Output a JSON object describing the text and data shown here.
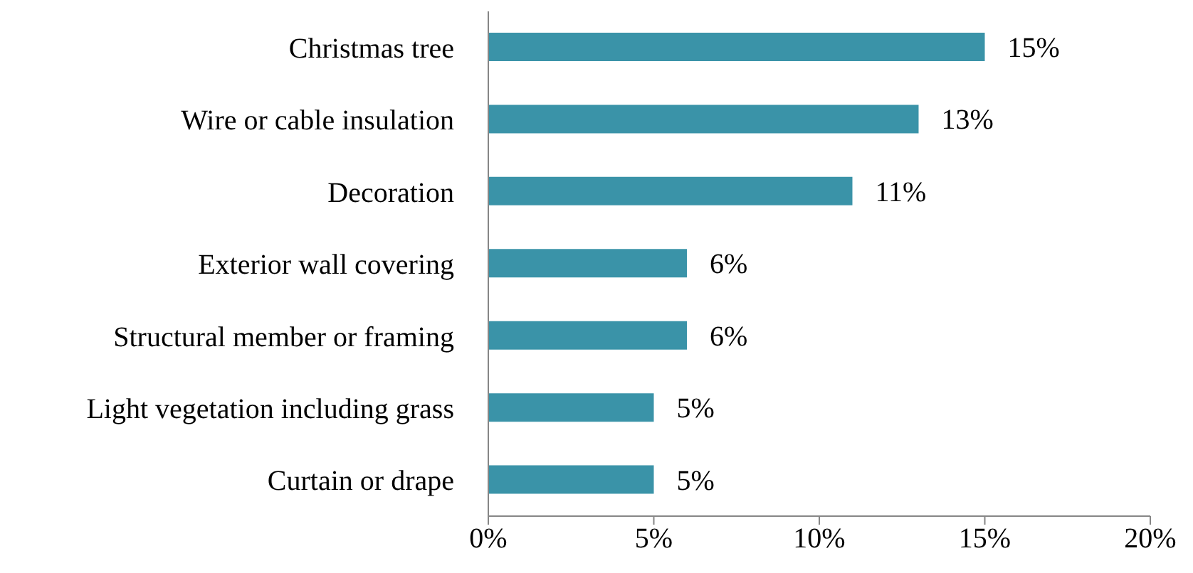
{
  "chart_data": {
    "type": "bar",
    "orientation": "horizontal",
    "categories": [
      "Christmas tree",
      "Wire or cable insulation",
      "Decoration",
      "Exterior wall covering",
      "Structural member or framing",
      "Light vegetation including grass",
      "Curtain or drape"
    ],
    "values": [
      15,
      13,
      11,
      6,
      6,
      5,
      5
    ],
    "value_labels": [
      "15%",
      "13%",
      "11%",
      "6%",
      "6%",
      "5%",
      "5%"
    ],
    "color": "#3a93a8",
    "xlim": [
      0,
      20
    ],
    "xticks": [
      {
        "value": 0,
        "label": "0%"
      },
      {
        "value": 5,
        "label": "5%"
      },
      {
        "value": 10,
        "label": "10%"
      },
      {
        "value": 15,
        "label": "15%"
      },
      {
        "value": 20,
        "label": "20%"
      }
    ],
    "grid": false,
    "legend": false
  }
}
